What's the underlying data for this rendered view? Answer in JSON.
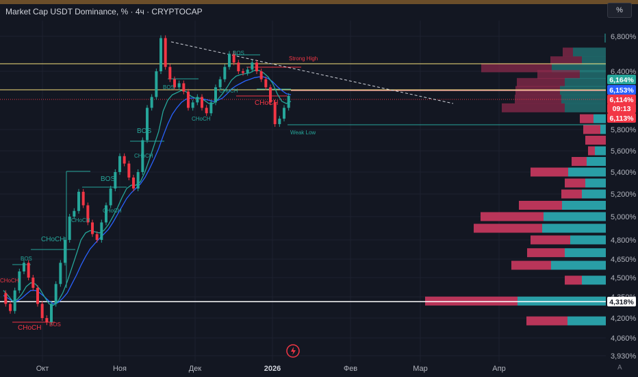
{
  "title": "Market Cap USDT Dominance, % · 4ч · CRYPTOCAP",
  "scale_button": "%",
  "auto_button": "A",
  "chart_data": {
    "type": "line",
    "y_axis_labels": [
      "6,800%",
      "6,400%",
      "5,800%",
      "5,600%",
      "5,400%",
      "5,200%",
      "5,000%",
      "4,800%",
      "4,650%",
      "4,500%",
      "4,350%",
      "4,200%",
      "4,060%",
      "3,930%"
    ],
    "x_axis_labels": [
      "Окт",
      "Ноя",
      "Дек",
      "2026",
      "Фев",
      "Мар",
      "Апр"
    ],
    "price_tags": [
      {
        "text": "6,164%",
        "bg": "#26a69a",
        "fg": "#ffffff"
      },
      {
        "text": "6,153%",
        "bg": "#2962ff",
        "fg": "#ffffff"
      },
      {
        "text": "6,114%",
        "bg": "#f23645",
        "fg": "#ffffff"
      },
      {
        "text": "09:13",
        "bg": "#f23645",
        "fg": "#ffffff"
      },
      {
        "text": "6,113%",
        "bg": "#f23645",
        "fg": "#ffffff"
      },
      {
        "text": "4,318%",
        "bg": "#ffffff",
        "fg": "#131722"
      }
    ],
    "annotations": [
      "Strong High",
      "Weak Low",
      "BOS",
      "CHoCH"
    ],
    "series": [
      {
        "values": [
          4.38,
          4.3,
          4.25,
          4.4,
          4.55,
          4.62,
          4.5,
          4.42,
          4.3,
          4.2,
          4.17,
          4.3,
          4.45,
          4.62,
          4.8,
          5.0,
          5.05,
          5.22,
          5.1,
          4.95,
          4.85,
          4.8,
          4.95,
          5.1,
          5.25,
          5.4,
          5.55,
          5.48,
          5.35,
          5.25,
          5.4,
          5.7,
          6.0,
          6.1,
          6.4,
          6.78,
          6.45,
          6.3,
          6.2,
          6.25,
          6.15,
          6.0,
          6.05,
          6.1,
          6.0,
          5.95,
          6.05,
          6.2,
          6.3,
          6.45,
          6.6,
          6.5,
          6.4,
          6.38,
          6.42,
          6.5,
          6.4,
          6.3,
          6.2,
          6.05,
          5.85,
          5.9,
          6.0,
          6.11
        ]
      },
      {
        "values": [
          4.4,
          4.36,
          4.32,
          4.33,
          4.37,
          4.43,
          4.46,
          4.45,
          4.41,
          4.35,
          4.3,
          4.29,
          4.32,
          4.38,
          4.47,
          4.58,
          4.69,
          4.8,
          4.86,
          4.88,
          4.87,
          4.86,
          4.88,
          4.93,
          5.0,
          5.08,
          5.17,
          5.25,
          5.28,
          5.28,
          5.31,
          5.4,
          5.52,
          5.65,
          5.78,
          5.97,
          6.07,
          6.12,
          6.14,
          6.16,
          6.15,
          6.11,
          6.09,
          6.09,
          6.07,
          6.04,
          6.04,
          6.08,
          6.13,
          6.2,
          6.29,
          6.34,
          6.36,
          6.37,
          6.38,
          6.41,
          6.41,
          6.38,
          6.33,
          6.25,
          6.13,
          6.06,
          6.04,
          6.06
        ]
      },
      {
        "values": [
          4.36,
          4.34,
          4.32,
          4.32,
          4.34,
          4.37,
          4.4,
          4.4,
          4.38,
          4.35,
          4.32,
          4.3,
          4.31,
          4.34,
          4.38,
          4.45,
          4.52,
          4.6,
          4.67,
          4.73,
          4.77,
          4.81,
          4.85,
          4.89,
          4.95,
          5.02,
          5.09,
          5.16,
          5.21,
          5.25,
          5.29,
          5.35,
          5.43,
          5.52,
          5.62,
          5.74,
          5.85,
          5.94,
          6.0,
          6.05,
          6.08,
          6.09,
          6.09,
          6.09,
          6.08,
          6.07,
          6.06,
          6.07,
          6.09,
          6.13,
          6.18,
          6.22,
          6.25,
          6.28,
          6.3,
          6.32,
          6.33,
          6.33,
          6.31,
          6.27,
          6.21,
          6.16,
          6.13,
          6.12
        ]
      }
    ],
    "volume_profile": [
      {
        "level": 6.78,
        "down": 0,
        "up": 2
      },
      {
        "level": 6.62,
        "down": 15,
        "up": 48
      },
      {
        "level": 6.52,
        "down": 46,
        "up": 35
      },
      {
        "level": 6.44,
        "down": 103,
        "up": 79
      },
      {
        "level": 6.36,
        "down": 62,
        "up": 38
      },
      {
        "level": 6.26,
        "down": 70,
        "up": 60
      },
      {
        "level": 6.16,
        "down": 65,
        "up": 67
      },
      {
        "level": 6.08,
        "down": 68,
        "up": 65
      },
      {
        "level": 6.0,
        "down": 92,
        "up": 60
      },
      {
        "level": 5.9,
        "down": 20,
        "up": 18
      },
      {
        "level": 5.8,
        "down": 25,
        "up": 8
      },
      {
        "level": 5.7,
        "down": 30,
        "up": 0
      },
      {
        "level": 5.6,
        "down": 10,
        "up": 16
      },
      {
        "level": 5.5,
        "down": 22,
        "up": 28
      },
      {
        "level": 5.4,
        "down": 55,
        "up": 55
      },
      {
        "level": 5.3,
        "down": 30,
        "up": 30
      },
      {
        "level": 5.2,
        "down": 30,
        "up": 35
      },
      {
        "level": 5.1,
        "down": 63,
        "up": 64
      },
      {
        "level": 5.0,
        "down": 92,
        "up": 91
      },
      {
        "level": 4.9,
        "down": 100,
        "up": 93
      },
      {
        "level": 4.8,
        "down": 58,
        "up": 52
      },
      {
        "level": 4.7,
        "down": 55,
        "up": 60
      },
      {
        "level": 4.6,
        "down": 58,
        "up": 80
      },
      {
        "level": 4.48,
        "down": 25,
        "up": 35
      },
      {
        "level": 4.32,
        "down": 135,
        "up": 129
      },
      {
        "level": 4.18,
        "down": 60,
        "up": 56
      }
    ]
  }
}
